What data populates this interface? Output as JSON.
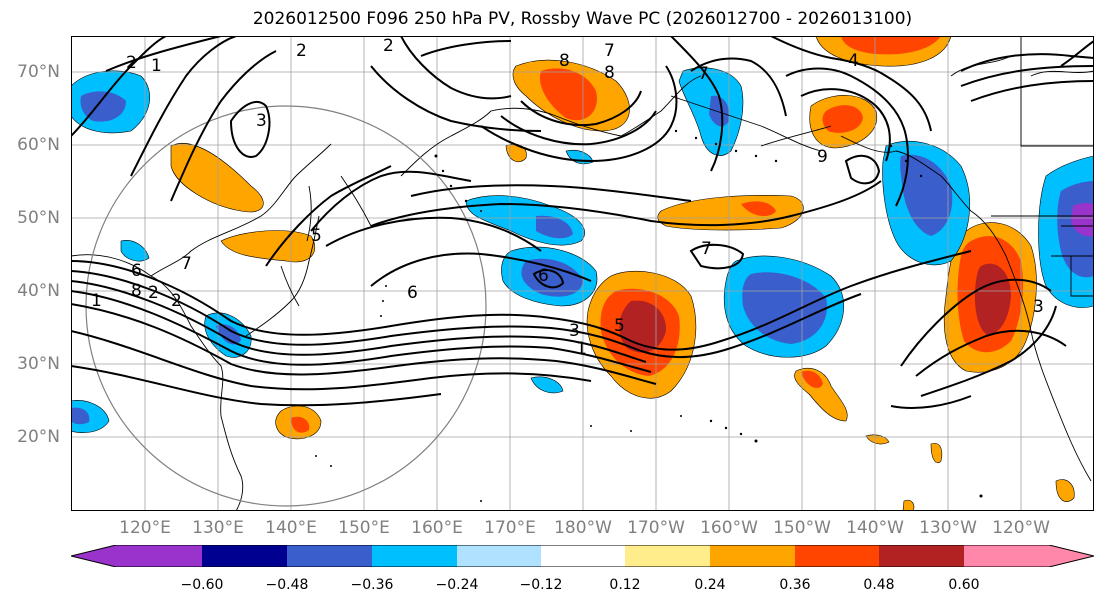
{
  "title": "2026012500 F096 250 hPa PV, Rossby Wave PC (2026012700 - 2026013100)",
  "map": {
    "lat_labels": [
      "70°N",
      "60°N",
      "50°N",
      "40°N",
      "30°N",
      "20°N"
    ],
    "lon_labels": [
      "120°E",
      "130°E",
      "140°E",
      "150°E",
      "160°E",
      "170°E",
      "180°W",
      "170°W",
      "160°W",
      "150°W",
      "140°W",
      "130°W",
      "120°W"
    ],
    "contour_labels": [
      "2",
      "2",
      "1",
      "3",
      "8",
      "7",
      "8",
      "4",
      "2",
      "6",
      "7",
      "7",
      "6",
      "8",
      "2",
      "2",
      "1",
      "5",
      "6",
      "3",
      "5",
      "1",
      "7",
      "9",
      "3"
    ]
  },
  "colorbar": {
    "ticks": [
      "−0.60",
      "−0.48",
      "−0.36",
      "−0.24",
      "−0.12",
      "0.12",
      "0.24",
      "0.36",
      "0.48",
      "0.60"
    ],
    "colors": [
      "#9933cc",
      "#000090",
      "#3a5fcd",
      "#00bfff",
      "#b0e2ff",
      "#ffffff",
      "#ffec8b",
      "#ffa500",
      "#ff4500",
      "#b22222",
      "#ff88aa"
    ]
  }
}
